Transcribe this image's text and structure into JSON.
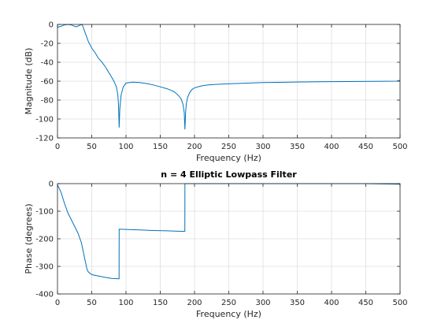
{
  "chart_data": [
    {
      "type": "line",
      "title": "",
      "xlabel": "Frequency (Hz)",
      "ylabel": "Magnitude (dB)",
      "xlim": [
        0,
        500
      ],
      "ylim": [
        -120,
        0
      ],
      "xticks": [
        0,
        50,
        100,
        150,
        200,
        250,
        300,
        350,
        400,
        450,
        500
      ],
      "yticks": [
        0,
        -20,
        -40,
        -60,
        -80,
        -100,
        -120
      ],
      "grid": true,
      "series": [
        {
          "color": "#0072bd",
          "x": [
            0,
            5,
            10,
            15,
            20,
            25,
            28,
            32,
            36,
            40,
            45,
            50,
            55,
            60,
            65,
            70,
            75,
            80,
            83,
            86,
            88,
            89,
            89.5,
            90,
            91,
            93,
            96,
            100,
            110,
            120,
            130,
            140,
            150,
            160,
            170,
            175,
            180,
            183,
            185,
            186,
            187,
            188,
            190,
            193,
            196,
            200,
            210,
            220,
            240,
            260,
            280,
            300,
            320,
            340,
            360,
            380,
            400,
            420,
            440,
            460,
            480,
            495,
            500
          ],
          "y": [
            -3,
            -2,
            -0.5,
            0,
            -0.5,
            -2,
            -2.5,
            -1,
            0,
            -8,
            -18,
            -25,
            -30,
            -36,
            -40,
            -45,
            -51,
            -57,
            -61,
            -66,
            -74,
            -84,
            -95,
            -109,
            -89,
            -74,
            -66,
            -62,
            -61,
            -61.5,
            -62.5,
            -64,
            -66,
            -68,
            -71,
            -74,
            -78,
            -84,
            -93,
            -111,
            -93,
            -84,
            -77,
            -72,
            -69,
            -67,
            -65,
            -64,
            -63,
            -62.5,
            -62,
            -61.5,
            -61.2,
            -61,
            -60.8,
            -60.6,
            -60.5,
            -60.4,
            -60.3,
            -60.2,
            -60.1,
            -60,
            -59
          ]
        }
      ]
    },
    {
      "type": "line",
      "title": "n = 4 Elliptic Lowpass Filter",
      "xlabel": "Frequency (Hz)",
      "ylabel": "Phase (degrees)",
      "xlim": [
        0,
        500
      ],
      "ylim": [
        -400,
        0
      ],
      "xticks": [
        0,
        50,
        100,
        150,
        200,
        250,
        300,
        350,
        400,
        450,
        500
      ],
      "yticks": [
        0,
        -100,
        -200,
        -300,
        -400
      ],
      "grid": true,
      "series": [
        {
          "color": "#0072bd",
          "x": [
            0,
            5,
            10,
            15,
            20,
            25,
            30,
            35,
            40,
            43,
            45,
            50,
            60,
            70,
            80,
            89.9,
            90,
            100,
            120,
            140,
            160,
            180,
            185.9,
            186,
            200,
            250,
            300,
            350,
            400,
            450,
            500
          ],
          "y": [
            -5,
            -30,
            -70,
            -105,
            -130,
            -155,
            -180,
            -215,
            -275,
            -310,
            -320,
            -330,
            -335,
            -340,
            -344,
            -345,
            -165,
            -166,
            -168,
            -170,
            -171,
            -173,
            -173,
            2,
            2,
            1.5,
            1.2,
            0.8,
            0.5,
            0,
            -2
          ]
        }
      ]
    }
  ]
}
